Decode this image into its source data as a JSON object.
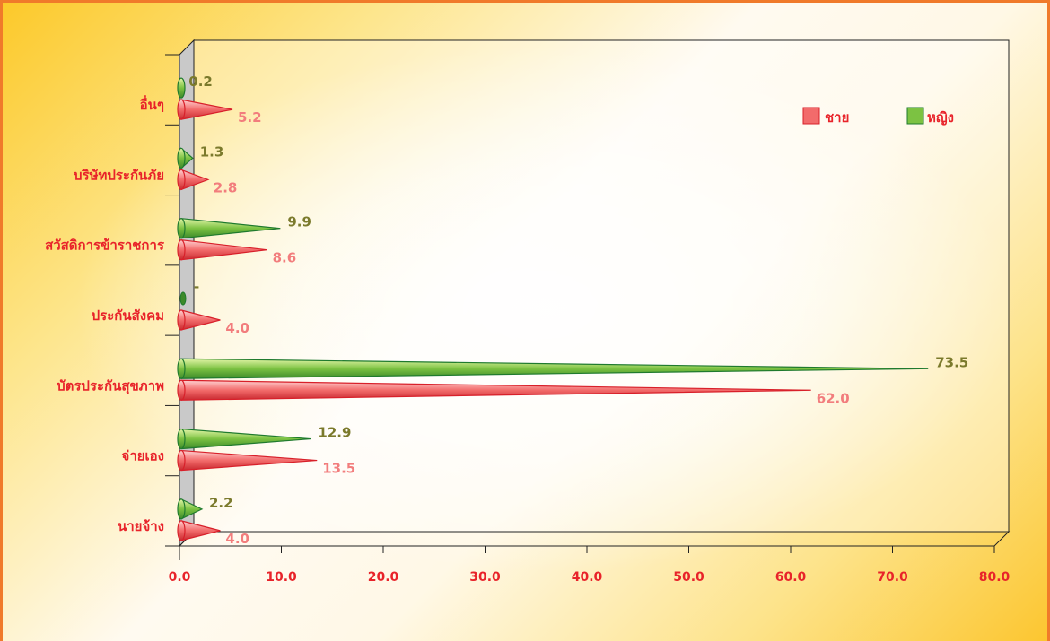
{
  "chart_data": {
    "type": "bar",
    "orientation": "horizontal",
    "categories": [
      "นายจ้าง",
      "จ่ายเอง",
      "บัตรประกันสุขภาพ",
      "ประกันสังคม",
      "สวัสดิการข้าราชการ",
      "บริษัทประกันภัย",
      "อื่นๆ"
    ],
    "series": [
      {
        "name": "ชาย",
        "values": [
          4.0,
          13.5,
          62.0,
          4.0,
          8.6,
          2.8,
          5.2
        ],
        "labels": [
          "4.0",
          "13.5",
          "62.0",
          "4.0",
          "8.6",
          "2.8",
          "5.2"
        ],
        "color": "#f26b6b"
      },
      {
        "name": "หญิง",
        "values": [
          2.2,
          12.9,
          73.5,
          0,
          9.9,
          1.3,
          0.2
        ],
        "labels": [
          "2.2",
          "12.9",
          "73.5",
          "-",
          "9.9",
          "1.3",
          "0.2"
        ],
        "color": "#7cc242"
      }
    ],
    "xticks": [
      "0.0",
      "10.0",
      "20.0",
      "30.0",
      "40.0",
      "50.0",
      "60.0",
      "70.0",
      "80.0"
    ],
    "xlim": [
      0,
      80
    ],
    "legend_position": "top-right",
    "grid": false
  },
  "colors": {
    "male_fill": "#f26b6b",
    "male_stroke": "#d8202a",
    "female_fill": "#7cc242",
    "female_stroke": "#1f7a2e",
    "label_red": "#e8232a",
    "frame": "#f07a2a"
  }
}
